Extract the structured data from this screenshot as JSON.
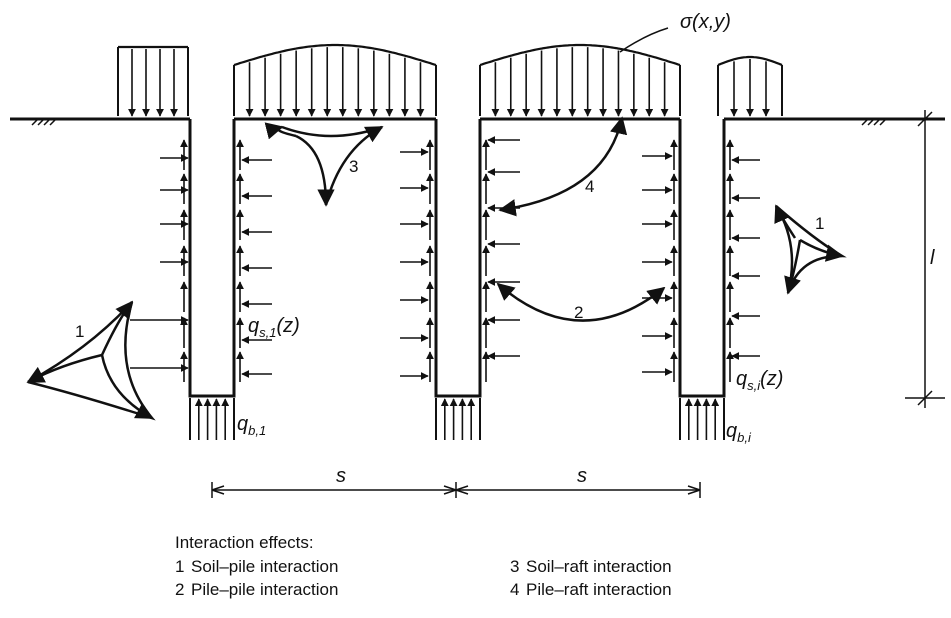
{
  "labels": {
    "sigma": "σ(x,y)",
    "qs1": "q",
    "qs1_sub": "s,1",
    "qs1_arg": "(z)",
    "qsi": "q",
    "qsi_sub": "s,i",
    "qsi_arg": "(z)",
    "qb1": "q",
    "qb1_sub": "b,1",
    "qbi": "q",
    "qbi_sub": "b,i",
    "spacing_1": "s",
    "spacing_2": "s",
    "length": "l",
    "effect_1_left": "1",
    "effect_1_right": "1",
    "effect_2": "2",
    "effect_3": "3",
    "effect_4": "4"
  },
  "legend": {
    "title": "Interaction effects:",
    "items": [
      {
        "num": "1",
        "text": "Soil–pile interaction"
      },
      {
        "num": "3",
        "text": "Soil–raft interaction"
      },
      {
        "num": "2",
        "text": "Pile–pile interaction"
      },
      {
        "num": "4",
        "text": "Pile–raft interaction"
      }
    ]
  },
  "colors": {
    "ink": "#111111",
    "background": "#ffffff"
  }
}
